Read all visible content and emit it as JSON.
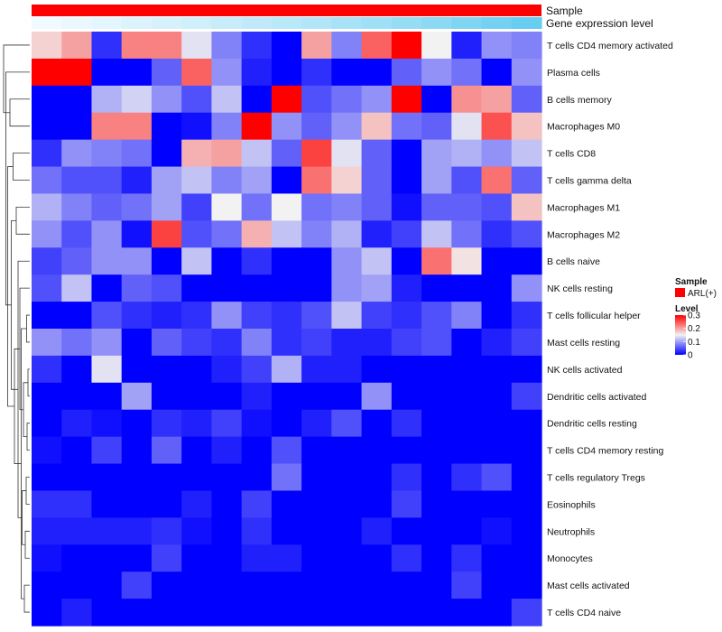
{
  "chart_data": {
    "type": "heatmap",
    "title": "",
    "annotation_tracks": [
      "Sample",
      "Gene expression level"
    ],
    "sample_group": "ARL(+)",
    "rows": [
      "T cells CD4 memory activated",
      "Plasma cells",
      "B cells memory",
      "Macrophages M0",
      "T cells CD8",
      "T cells gamma delta",
      "Macrophages M1",
      "Macrophages M2",
      "B cells naive",
      "NK cells resting",
      "T cells follicular helper",
      "Mast cells resting",
      "NK cells activated",
      "Dendritic cells activated",
      "Dendritic cells resting",
      "T cells CD4 memory resting",
      "T cells regulatory  Tregs",
      "Eosinophils",
      "Neutrophils",
      "Monocytes",
      "Mast cells activated",
      "T cells CD4 naive"
    ],
    "n_columns": 17,
    "values": [
      [
        0.17,
        0.2,
        0.03,
        0.22,
        0.22,
        0.14,
        0.08,
        0.03,
        0.0,
        0.2,
        0.08,
        0.24,
        0.3,
        0.15,
        0.02,
        0.09,
        0.08
      ],
      [
        0.3,
        0.3,
        0.0,
        0.0,
        0.06,
        0.24,
        0.09,
        0.02,
        0.0,
        0.03,
        0.0,
        0.0,
        0.06,
        0.09,
        0.07,
        0.0,
        0.09
      ],
      [
        0.0,
        0.0,
        0.11,
        0.13,
        0.09,
        0.05,
        0.12,
        0.0,
        0.3,
        0.05,
        0.07,
        0.09,
        0.3,
        0.0,
        0.21,
        0.2,
        0.06
      ],
      [
        0.0,
        0.0,
        0.22,
        0.22,
        0.0,
        0.01,
        0.08,
        0.3,
        0.09,
        0.06,
        0.09,
        0.18,
        0.07,
        0.06,
        0.14,
        0.25,
        0.18
      ],
      [
        0.03,
        0.09,
        0.08,
        0.07,
        0.0,
        0.19,
        0.2,
        0.12,
        0.06,
        0.26,
        0.14,
        0.06,
        0.0,
        0.1,
        0.11,
        0.09,
        0.12
      ],
      [
        0.07,
        0.05,
        0.05,
        0.02,
        0.1,
        0.12,
        0.08,
        0.1,
        0.0,
        0.23,
        0.17,
        0.06,
        0.0,
        0.1,
        0.05,
        0.23,
        0.06
      ],
      [
        0.11,
        0.08,
        0.06,
        0.07,
        0.1,
        0.04,
        0.15,
        0.07,
        0.15,
        0.07,
        0.08,
        0.06,
        0.01,
        0.06,
        0.06,
        0.05,
        0.18
      ],
      [
        0.09,
        0.05,
        0.09,
        0.01,
        0.26,
        0.05,
        0.07,
        0.19,
        0.12,
        0.08,
        0.11,
        0.02,
        0.04,
        0.12,
        0.07,
        0.03,
        0.05
      ],
      [
        0.04,
        0.06,
        0.09,
        0.09,
        0.0,
        0.12,
        0.0,
        0.03,
        0.0,
        0.0,
        0.09,
        0.12,
        0.0,
        0.23,
        0.16,
        0.0,
        0.0
      ],
      [
        0.05,
        0.12,
        0.0,
        0.06,
        0.05,
        0.0,
        0.0,
        0.0,
        0.0,
        0.0,
        0.09,
        0.1,
        0.02,
        0.0,
        0.0,
        0.0,
        0.09
      ],
      [
        0.0,
        0.0,
        0.05,
        0.03,
        0.02,
        0.03,
        0.09,
        0.04,
        0.03,
        0.05,
        0.12,
        0.04,
        0.03,
        0.05,
        0.08,
        0.0,
        0.03
      ],
      [
        0.09,
        0.07,
        0.09,
        0.0,
        0.06,
        0.04,
        0.03,
        0.08,
        0.03,
        0.04,
        0.02,
        0.02,
        0.04,
        0.05,
        0.0,
        0.02,
        0.04
      ],
      [
        0.03,
        0.0,
        0.14,
        0.0,
        0.0,
        0.0,
        0.02,
        0.04,
        0.11,
        0.02,
        0.02,
        0.0,
        0.0,
        0.0,
        0.0,
        0.0,
        0.0
      ],
      [
        0.0,
        0.0,
        0.0,
        0.1,
        0.0,
        0.0,
        0.0,
        0.02,
        0.0,
        0.0,
        0.0,
        0.09,
        0.0,
        0.0,
        0.0,
        0.0,
        0.04
      ],
      [
        0.0,
        0.02,
        0.01,
        0.0,
        0.03,
        0.02,
        0.04,
        0.01,
        0.0,
        0.02,
        0.05,
        0.0,
        0.03,
        0.0,
        0.0,
        0.0,
        0.0
      ],
      [
        0.01,
        0.0,
        0.04,
        0.0,
        0.06,
        0.0,
        0.02,
        0.0,
        0.05,
        0.0,
        0.0,
        0.0,
        0.0,
        0.0,
        0.0,
        0.0,
        0.0
      ],
      [
        0.0,
        0.0,
        0.0,
        0.0,
        0.0,
        0.0,
        0.0,
        0.0,
        0.07,
        0.0,
        0.0,
        0.0,
        0.03,
        0.0,
        0.03,
        0.05,
        0.0
      ],
      [
        0.03,
        0.03,
        0.0,
        0.0,
        0.0,
        0.02,
        0.0,
        0.04,
        0.0,
        0.0,
        0.0,
        0.0,
        0.04,
        0.0,
        0.0,
        0.0,
        0.0
      ],
      [
        0.02,
        0.02,
        0.02,
        0.02,
        0.03,
        0.01,
        0.0,
        0.03,
        0.0,
        0.0,
        0.0,
        0.02,
        0.0,
        0.0,
        0.0,
        0.01,
        0.0
      ],
      [
        0.01,
        0.0,
        0.0,
        0.0,
        0.04,
        0.0,
        0.0,
        0.02,
        0.02,
        0.0,
        0.0,
        0.0,
        0.03,
        0.0,
        0.03,
        0.0,
        0.0
      ],
      [
        0.0,
        0.0,
        0.0,
        0.04,
        0.0,
        0.0,
        0.0,
        0.0,
        0.0,
        0.0,
        0.0,
        0.0,
        0.0,
        0.0,
        0.04,
        0.0,
        0.0
      ],
      [
        0.0,
        0.02,
        0.0,
        0.0,
        0.0,
        0.0,
        0.0,
        0.0,
        0.0,
        0.0,
        0.0,
        0.0,
        0.0,
        0.0,
        0.0,
        0.0,
        0.04
      ]
    ],
    "gene_expression_track": [
      0.02,
      0.06,
      0.1,
      0.14,
      0.18,
      0.22,
      0.27,
      0.31,
      0.35,
      0.4,
      0.45,
      0.5,
      0.56,
      0.62,
      0.69,
      0.76,
      0.84
    ],
    "colorscale": {
      "min": 0,
      "mid": 0.15,
      "max": 0.3,
      "low_color": "#0000ff",
      "mid_color": "#f2f2f2",
      "high_color": "#ff0000"
    },
    "legend": {
      "position": "right",
      "sample_title": "Sample",
      "sample_color": "#ff0000",
      "level_title": "Level",
      "level_ticks": [
        0,
        0.1,
        0.2,
        0.3
      ]
    },
    "track_colors": {
      "sample": "#ff0000",
      "expr_low": "#f4fbff",
      "expr_high": "#4cc4ee"
    },
    "dendrogram": "row clustering tree (left side)"
  }
}
